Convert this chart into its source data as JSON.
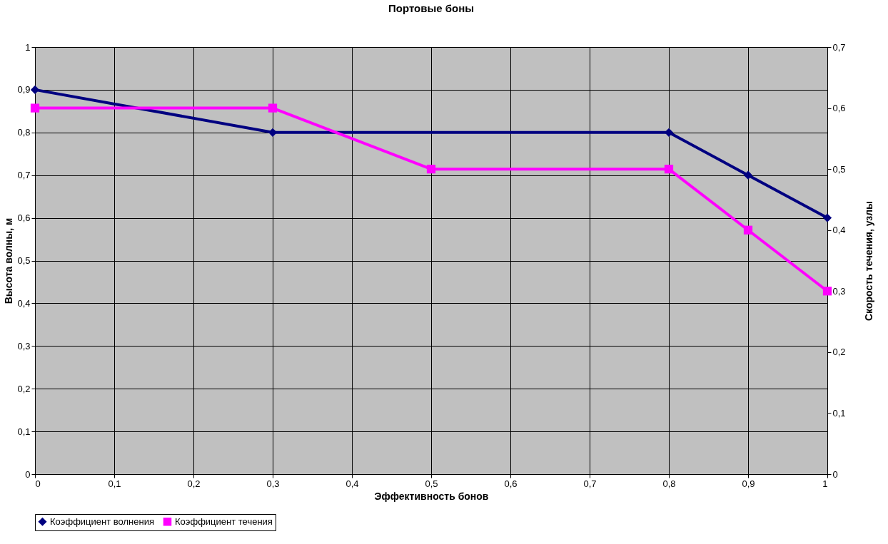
{
  "chart_data": {
    "type": "line",
    "title": "Портовые боны",
    "xlabel": "Эффективность бонов",
    "ylabel": "Высота волны, м",
    "y2label": "Скорость течения, узлы",
    "xlim": [
      0,
      1
    ],
    "xticks": [
      0,
      {
        "value": 0.1,
        "label": "0,1"
      },
      {
        "value": 0.2,
        "label": "0,2"
      },
      {
        "value": 0.3,
        "label": "0,3"
      },
      {
        "value": 0.4,
        "label": "0,4"
      },
      {
        "value": 0.5,
        "label": "0,5"
      },
      {
        "value": 0.6,
        "label": "0,6"
      },
      {
        "value": 0.7,
        "label": "0,7"
      },
      {
        "value": 0.8,
        "label": "0,8"
      },
      {
        "value": 0.9,
        "label": "0,9"
      },
      1
    ],
    "ylim": [
      0,
      1
    ],
    "yticks": [
      0,
      {
        "value": 0.1,
        "label": "0,1"
      },
      {
        "value": 0.2,
        "label": "0,2"
      },
      {
        "value": 0.3,
        "label": "0,3"
      },
      {
        "value": 0.4,
        "label": "0,4"
      },
      {
        "value": 0.5,
        "label": "0,5"
      },
      {
        "value": 0.6,
        "label": "0,6"
      },
      {
        "value": 0.7,
        "label": "0,7"
      },
      {
        "value": 0.8,
        "label": "0,8"
      },
      {
        "value": 0.9,
        "label": "0,9"
      },
      1
    ],
    "y2lim": [
      0,
      0.7
    ],
    "y2ticks": [
      0,
      {
        "value": 0.1,
        "label": "0,1"
      },
      {
        "value": 0.2,
        "label": "0,2"
      },
      {
        "value": 0.3,
        "label": "0,3"
      },
      {
        "value": 0.4,
        "label": "0,4"
      },
      {
        "value": 0.5,
        "label": "0,5"
      },
      {
        "value": 0.6,
        "label": "0,6"
      },
      {
        "value": 0.7,
        "label": "0,7"
      }
    ],
    "grid": true,
    "legend": "bottom",
    "line_style": "solid",
    "series": [
      {
        "name": "Коэффициент волнения",
        "color": "#000080",
        "marker": "diamond",
        "x": [
          0,
          0.3,
          0.8,
          0.9,
          1
        ],
        "values": [
          0.9,
          0.8,
          0.8,
          0.7,
          0.6
        ]
      },
      {
        "name": "Коэффициент течения",
        "color": "#ff00ff",
        "marker": "square",
        "axis": "y2",
        "x": [
          0,
          0.3,
          0.5,
          0.8,
          0.9,
          1
        ],
        "values": [
          0.6,
          0.6,
          0.5,
          0.5,
          0.4,
          0.3
        ]
      }
    ]
  }
}
